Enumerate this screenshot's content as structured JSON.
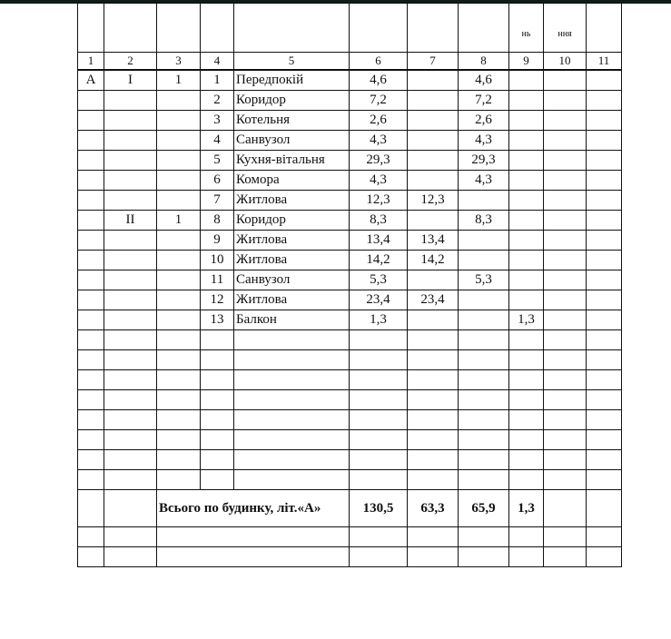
{
  "header_fragments": [
    "",
    "",
    "",
    "",
    "",
    "",
    "",
    "",
    "нь",
    "ння",
    ""
  ],
  "column_numbers": [
    "1",
    "2",
    "3",
    "4",
    "5",
    "6",
    "7",
    "8",
    "9",
    "10",
    "11"
  ],
  "rows": [
    [
      "А",
      "I",
      "1",
      "1",
      "Передпокій",
      "4,6",
      "",
      "4,6",
      "",
      "",
      ""
    ],
    [
      "",
      "",
      "",
      "2",
      "Коридор",
      "7,2",
      "",
      "7,2",
      "",
      "",
      ""
    ],
    [
      "",
      "",
      "",
      "3",
      "Котельня",
      "2,6",
      "",
      "2,6",
      "",
      "",
      ""
    ],
    [
      "",
      "",
      "",
      "4",
      "Санвузол",
      "4,3",
      "",
      "4,3",
      "",
      "",
      ""
    ],
    [
      "",
      "",
      "",
      "5",
      "Кухня-вітальня",
      "29,3",
      "",
      "29,3",
      "",
      "",
      ""
    ],
    [
      "",
      "",
      "",
      "6",
      "Комора",
      "4,3",
      "",
      "4,3",
      "",
      "",
      ""
    ],
    [
      "",
      "",
      "",
      "7",
      "Житлова",
      "12,3",
      "12,3",
      "",
      "",
      "",
      ""
    ],
    [
      "",
      "II",
      "1",
      "8",
      "Коридор",
      "8,3",
      "",
      "8,3",
      "",
      "",
      ""
    ],
    [
      "",
      "",
      "",
      "9",
      "Житлова",
      "13,4",
      "13,4",
      "",
      "",
      "",
      ""
    ],
    [
      "",
      "",
      "",
      "10",
      "Житлова",
      "14,2",
      "14,2",
      "",
      "",
      "",
      ""
    ],
    [
      "",
      "",
      "",
      "11",
      "Санвузол",
      "5,3",
      "",
      "5,3",
      "",
      "",
      ""
    ],
    [
      "",
      "",
      "",
      "12",
      "Житлова",
      "23,4",
      "23,4",
      "",
      "",
      "",
      ""
    ],
    [
      "",
      "",
      "",
      "13",
      "Балкон",
      "1,3",
      "",
      "",
      "1,3",
      "",
      ""
    ]
  ],
  "empty_rows": 8,
  "total": {
    "label": "Всього по будинку, літ.«А»",
    "c6": "130,5",
    "c7": "63,3",
    "c8": "65,9",
    "c9": "1,3",
    "c10": "",
    "c11": ""
  }
}
